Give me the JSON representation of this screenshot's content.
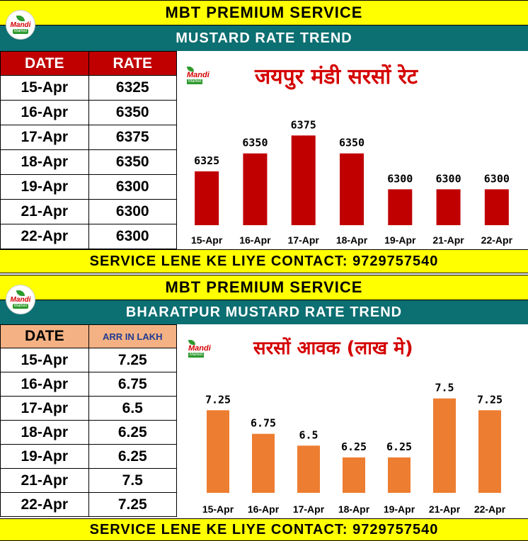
{
  "section1": {
    "header": "MBT PREMIUM SERVICE",
    "subheader": "MUSTARD RATE TREND",
    "logo": {
      "line1": "Mandi",
      "line2": "Market"
    },
    "table": {
      "col1": "DATE",
      "col2": "RATE",
      "rows": [
        {
          "date": "15-Apr",
          "value": "6325"
        },
        {
          "date": "16-Apr",
          "value": "6350"
        },
        {
          "date": "17-Apr",
          "value": "6375"
        },
        {
          "date": "18-Apr",
          "value": "6350"
        },
        {
          "date": "19-Apr",
          "value": "6300"
        },
        {
          "date": "21-Apr",
          "value": "6300"
        },
        {
          "date": "22-Apr",
          "value": "6300"
        }
      ]
    },
    "contact": "SERVICE LENE KE LIYE CONTACT: 9729757540"
  },
  "section2": {
    "header": "MBT PREMIUM SERVICE",
    "subheader": "BHARATPUR MUSTARD RATE TREND",
    "logo": {
      "line1": "Mandi",
      "line2": "Market"
    },
    "table": {
      "col1": "DATE",
      "col2": "ARR IN LAKH",
      "rows": [
        {
          "date": "15-Apr",
          "value": "7.25"
        },
        {
          "date": "16-Apr",
          "value": "6.75"
        },
        {
          "date": "17-Apr",
          "value": "6.5"
        },
        {
          "date": "18-Apr",
          "value": "6.25"
        },
        {
          "date": "19-Apr",
          "value": "6.25"
        },
        {
          "date": "21-Apr",
          "value": "7.5"
        },
        {
          "date": "22-Apr",
          "value": "7.25"
        }
      ]
    },
    "contact": "SERVICE LENE KE LIYE CONTACT: 9729757540"
  },
  "chart_data": [
    {
      "type": "bar",
      "title": "जयपुर मंडी सरसों रेट",
      "categories": [
        "15-Apr",
        "16-Apr",
        "17-Apr",
        "18-Apr",
        "19-Apr",
        "21-Apr",
        "22-Apr"
      ],
      "values": [
        6325,
        6350,
        6375,
        6350,
        6300,
        6300,
        6300
      ],
      "ylim": [
        6250,
        6400
      ],
      "grid": false,
      "legend": "none",
      "color": "#c00000",
      "logo": {
        "line1": "Mandi",
        "line2": "Market"
      }
    },
    {
      "type": "bar",
      "title": "सरसों आवक (लाख मे)",
      "categories": [
        "15-Apr",
        "16-Apr",
        "17-Apr",
        "18-Apr",
        "19-Apr",
        "21-Apr",
        "22-Apr"
      ],
      "values": [
        7.25,
        6.75,
        6.5,
        6.25,
        6.25,
        7.5,
        7.25
      ],
      "ylim": [
        5.5,
        7.75
      ],
      "grid": false,
      "legend": "none",
      "color": "#ed7d31",
      "logo": {
        "line1": "Mandi",
        "line2": "Market"
      }
    }
  ]
}
